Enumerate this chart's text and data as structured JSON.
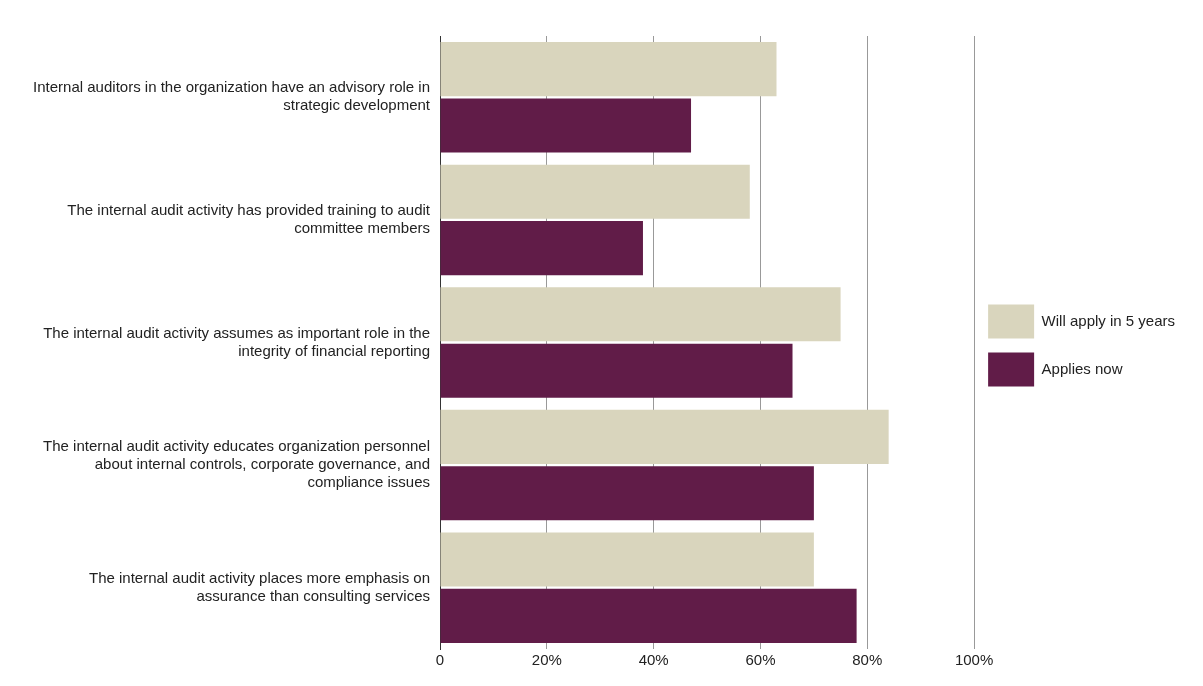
{
  "chart_data": {
    "type": "bar",
    "orientation": "horizontal",
    "categories": [
      "Internal auditors in the organization have an advisory role in strategic development",
      "The internal audit activity has provided training to audit committee members",
      "The internal audit activity assumes as important role in the integrity of financial reporting",
      "The internal audit activity educates organization personnel about internal controls, corporate governance, and compliance issues",
      "The internal audit activity places more emphasis on assurance than consulting services"
    ],
    "series": [
      {
        "name": "Will apply in 5 years",
        "color": "#d9d5bd",
        "values": [
          63,
          58,
          75,
          84,
          70
        ]
      },
      {
        "name": "Applies now",
        "color": "#611c48",
        "values": [
          47,
          38,
          66,
          70,
          78
        ]
      }
    ],
    "xlim": [
      0,
      100
    ],
    "xticks": [
      0,
      {
        "value": 20,
        "label": "20%"
      },
      {
        "value": 40,
        "label": "40%"
      },
      {
        "value": 60,
        "label": "60%"
      },
      {
        "value": 80,
        "label": "80%"
      },
      {
        "value": 100,
        "label": "100%"
      }
    ],
    "grid": "x",
    "legend": "right"
  }
}
